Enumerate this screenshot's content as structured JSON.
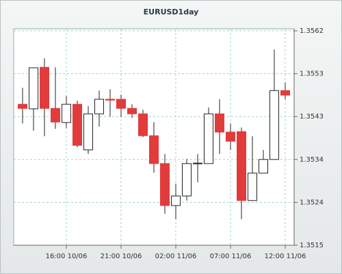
{
  "chart_data": {
    "type": "candlestick",
    "title": "EURUSD1day",
    "categories": [
      null,
      null,
      null,
      null,
      "16:00 10/06",
      null,
      null,
      null,
      null,
      "21:00 10/06",
      null,
      null,
      null,
      null,
      "02:00 11/06",
      null,
      null,
      null,
      null,
      "07:00 11/06",
      null,
      null,
      null,
      null,
      "12:00 11/06"
    ],
    "open": [
      1.35459,
      1.35449,
      1.3554,
      1.3545,
      1.35419,
      1.35459,
      1.35359,
      1.35438,
      1.3547,
      1.3547,
      1.3545,
      1.35438,
      1.3539,
      1.35329,
      1.35237,
      1.35258,
      1.35329,
      1.35329,
      1.35438,
      1.35398,
      1.35399,
      1.35248,
      1.35308,
      1.35338,
      1.35489
    ],
    "high": [
      1.35495,
      1.35539,
      1.3556,
      1.3554,
      1.35477,
      1.35467,
      1.35455,
      1.35489,
      1.35492,
      1.3548,
      1.35459,
      1.35447,
      1.3542,
      1.3535,
      1.35285,
      1.35339,
      1.3535,
      1.35452,
      1.3547,
      1.35417,
      1.35408,
      1.35389,
      1.35359,
      1.35579,
      1.35507
    ],
    "low": [
      1.35417,
      1.35401,
      1.35389,
      1.35405,
      1.35407,
      1.35365,
      1.3535,
      1.3541,
      1.35432,
      1.35431,
      1.35429,
      1.35387,
      1.35309,
      1.35219,
      1.35207,
      1.35248,
      1.35288,
      1.35329,
      1.3535,
      1.35359,
      1.35207,
      1.35248,
      1.35308,
      1.35338,
      1.3547
    ],
    "close": [
      1.3545,
      1.35539,
      1.3545,
      1.3542,
      1.35459,
      1.35369,
      1.35438,
      1.3547,
      1.35468,
      1.3545,
      1.35438,
      1.3539,
      1.35329,
      1.35237,
      1.35258,
      1.35329,
      1.3533,
      1.35438,
      1.35398,
      1.35378,
      1.35248,
      1.35308,
      1.35338,
      1.35489,
      1.35479
    ],
    "up_color": "#ffffff",
    "down_color": "#e23b3b",
    "ylim": [
      1.3515,
      1.3562
    ],
    "yticks": [
      1.3515,
      {
        "value": 1.35244,
        "label": "1.3524"
      },
      {
        "value": 1.35338,
        "label": "1.3534"
      },
      {
        "value": 1.35432,
        "label": "1.3543"
      },
      {
        "value": 1.35526,
        "label": "1.3553"
      },
      1.3562
    ],
    "grid": true
  }
}
